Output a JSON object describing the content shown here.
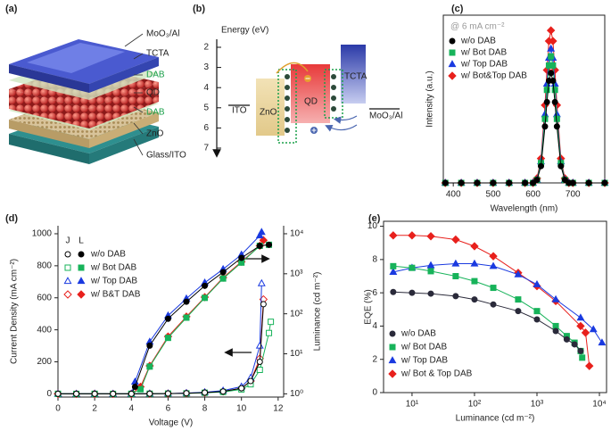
{
  "schematic": {
    "panel_label": "(a)",
    "labels": [
      "MoO₃/Al",
      "TCTA",
      "DAB",
      "QD",
      "DAB",
      "ZnO",
      "Glass/ITO"
    ]
  },
  "energy_diagram": {
    "panel_label": "(b)",
    "axis_label": "Energy (eV)",
    "yticks": [
      2,
      3,
      4,
      5,
      6,
      7
    ],
    "labels": {
      "ito": "ITO",
      "zno": "ZnO",
      "qd": "QD",
      "tcta": "TCTA",
      "moo3": "MoO₃/Al"
    }
  },
  "chart_data": [
    {
      "type": "line",
      "panel_label": "(c)",
      "annotation": "@ 6 mA cm⁻²",
      "x_label": "Wavelength (nm)",
      "y_label": "Intensity (a.u.)",
      "x": [
        380,
        420,
        460,
        500,
        540,
        580,
        600,
        610,
        620,
        630,
        635,
        640,
        645,
        650,
        655,
        660,
        670,
        680,
        690,
        700,
        740,
        780
      ],
      "xlim": [
        375,
        780
      ],
      "xticks": [
        400,
        500,
        600,
        700
      ],
      "ylim": [
        0,
        1.1
      ],
      "yticks": [],
      "legend": "upper left",
      "series": [
        {
          "name": "w/o DAB",
          "color": "#000000",
          "marker": "circle",
          "values": [
            0,
            0,
            0,
            0,
            0,
            0,
            0,
            0.02,
            0.11,
            0.37,
            0.53,
            0.67,
            0.72,
            0.67,
            0.53,
            0.37,
            0.11,
            0.02,
            0,
            0,
            0,
            0
          ]
        },
        {
          "name": "w/ Bot DAB",
          "color": "#17b35a",
          "marker": "square",
          "values": [
            0,
            0,
            0,
            0,
            0,
            0,
            0,
            0.02,
            0.13,
            0.42,
            0.61,
            0.77,
            0.83,
            0.77,
            0.61,
            0.42,
            0.13,
            0.02,
            0,
            0,
            0,
            0
          ]
        },
        {
          "name": "w/ Top DAB",
          "color": "#1a3ae0",
          "marker": "triangle",
          "values": [
            0,
            0,
            0,
            0,
            0,
            0,
            0,
            0.02,
            0.14,
            0.45,
            0.65,
            0.82,
            0.88,
            0.82,
            0.65,
            0.45,
            0.14,
            0.02,
            0,
            0,
            0,
            0
          ]
        },
        {
          "name": "w/ Bot&Top DAB",
          "color": "#e8201c",
          "marker": "diamond",
          "values": [
            0,
            0,
            0,
            0,
            0,
            0,
            0,
            0.03,
            0.16,
            0.51,
            0.74,
            0.93,
            1.0,
            0.93,
            0.74,
            0.51,
            0.16,
            0.03,
            0,
            0,
            0,
            0
          ]
        }
      ]
    },
    {
      "type": "line",
      "panel_label": "(d)",
      "x_label": "Voltage (V)",
      "y_label": "Current Density (mA cm⁻²)",
      "y2_label": "Luminance (cd m⁻²)",
      "legend_headers": [
        "J",
        "L"
      ],
      "legend": "upper left",
      "xlim": [
        0,
        12.3
      ],
      "xticks": [
        0,
        2,
        4,
        6,
        8,
        10,
        12
      ],
      "ylim": [
        -20,
        1050
      ],
      "yticks": [
        0,
        200,
        400,
        600,
        800,
        1000
      ],
      "y2scale": "log",
      "y2lim": [
        0.83,
        15849
      ],
      "y2ticks": [
        {
          "value": 1,
          "label": "10⁰"
        },
        {
          "value": 10,
          "label": "10¹"
        },
        {
          "value": 100,
          "label": "10²"
        },
        {
          "value": 1000,
          "label": "10³"
        },
        {
          "value": 10000,
          "label": "10⁴"
        }
      ],
      "series": [
        {
          "name": "w/o DAB",
          "color": "#000000",
          "marker": "circle",
          "filled": false,
          "x": [
            0,
            1,
            2,
            3,
            4,
            5,
            6,
            7,
            8,
            9,
            10,
            10.5,
            11,
            11.2
          ],
          "values": [
            0,
            0,
            0,
            0,
            0,
            1,
            2,
            4,
            8,
            15,
            35,
            80,
            200,
            560
          ]
        },
        {
          "name": "w/ Bot DAB",
          "color": "#17b35a",
          "marker": "square",
          "filled": false,
          "x": [
            0,
            1,
            2,
            3,
            4,
            5,
            6,
            7,
            8,
            9,
            10,
            10.5,
            11,
            11.5,
            11.6
          ],
          "values": [
            0,
            0,
            0,
            0,
            0,
            1,
            2,
            3,
            7,
            12,
            28,
            60,
            150,
            380,
            450
          ]
        },
        {
          "name": "w/ Top DAB",
          "color": "#1a3ae0",
          "marker": "triangle",
          "filled": false,
          "x": [
            0,
            1,
            2,
            3,
            4,
            5,
            6,
            7,
            8,
            9,
            10,
            10.5,
            11,
            11.1
          ],
          "values": [
            0,
            0,
            0,
            0,
            0,
            1,
            2,
            5,
            10,
            20,
            45,
            100,
            300,
            690
          ]
        },
        {
          "name": "w/ B&T DAB",
          "color": "#e8201c",
          "marker": "diamond",
          "filled": false,
          "x": [
            0,
            1,
            2,
            3,
            4,
            5,
            6,
            7,
            8,
            9,
            10,
            10.5,
            11,
            11.2
          ],
          "values": [
            0,
            0,
            0,
            0,
            0,
            1,
            2,
            4,
            8,
            15,
            35,
            80,
            220,
            590
          ]
        },
        {
          "color": "#000000",
          "marker": "circle",
          "filled": true,
          "axis": "y2",
          "x": [
            0,
            2,
            4,
            4.2,
            5,
            6,
            7,
            8,
            9,
            10,
            11,
            11.5
          ],
          "values": [
            1,
            1,
            1,
            1.5,
            16,
            75,
            200,
            500,
            1100,
            2500,
            5000,
            5300
          ]
        },
        {
          "color": "#17b35a",
          "marker": "square",
          "filled": true,
          "axis": "y2",
          "x": [
            0,
            2,
            4,
            4.5,
            5,
            6,
            7,
            8,
            9,
            10,
            11,
            11.5
          ],
          "values": [
            1,
            1,
            1,
            1.3,
            4.8,
            25,
            80,
            250,
            760,
            1900,
            5000,
            5300
          ]
        },
        {
          "color": "#1a3ae0",
          "marker": "triangle",
          "filled": true,
          "axis": "y2",
          "x": [
            0,
            2,
            4,
            4.2,
            5,
            6,
            7,
            8,
            9,
            10,
            11,
            11.1
          ],
          "values": [
            1,
            1,
            1,
            2,
            20,
            90,
            240,
            600,
            1300,
            3000,
            9000,
            11000
          ]
        },
        {
          "color": "#e8201c",
          "marker": "diamond",
          "filled": true,
          "axis": "y2",
          "x": [
            0,
            2,
            4,
            4.5,
            5,
            6,
            7,
            8,
            9,
            10,
            11,
            11.2
          ],
          "values": [
            1,
            1,
            1,
            1.5,
            5,
            27,
            85,
            260,
            800,
            2000,
            5000,
            6900
          ]
        }
      ]
    },
    {
      "type": "line",
      "panel_label": "(e)",
      "x_label": "Luminance (cd m⁻²)",
      "y_label": "EQE (%)",
      "legend": "lower left",
      "xscale": "log",
      "xlim": [
        3.5,
        13000
      ],
      "xticks": [
        {
          "value": 10,
          "label": "10¹"
        },
        {
          "value": 100,
          "label": "10²"
        },
        {
          "value": 1000,
          "label": "10³"
        },
        {
          "value": 10000,
          "label": "10⁴"
        }
      ],
      "ylim": [
        0,
        10.3
      ],
      "yticks": [
        0,
        2,
        4,
        6,
        8,
        10
      ],
      "series": [
        {
          "name": "w/o DAB",
          "color": "#2a2a3a",
          "marker": "circle",
          "x": [
            5,
            10,
            20,
            50,
            100,
            200,
            500,
            1000,
            2000,
            3000,
            4000,
            5000
          ],
          "values": [
            6.05,
            6.0,
            5.95,
            5.8,
            5.6,
            5.3,
            4.9,
            4.4,
            3.7,
            3.2,
            2.9,
            2.5
          ]
        },
        {
          "name": "w/ Bot DAB",
          "color": "#17b35a",
          "marker": "square",
          "x": [
            5,
            10,
            20,
            50,
            100,
            200,
            500,
            1000,
            2000,
            3000,
            4000,
            5000,
            5300
          ],
          "values": [
            7.6,
            7.5,
            7.3,
            7.0,
            6.7,
            6.3,
            5.6,
            4.9,
            4.0,
            3.4,
            3.0,
            2.5,
            2.1
          ]
        },
        {
          "name": "w/ Top DAB",
          "color": "#1a3ae0",
          "marker": "triangle",
          "x": [
            5,
            10,
            20,
            50,
            100,
            200,
            500,
            1000,
            2000,
            5000,
            8000,
            11000
          ],
          "values": [
            7.25,
            7.5,
            7.65,
            7.75,
            7.75,
            7.6,
            7.1,
            6.5,
            5.6,
            4.5,
            3.8,
            3.0
          ]
        },
        {
          "name": "w/ Bot & Top DAB",
          "color": "#e8201c",
          "marker": "diamond",
          "x": [
            5,
            10,
            20,
            50,
            100,
            200,
            500,
            1000,
            2000,
            5000,
            6000,
            6900
          ],
          "values": [
            9.45,
            9.45,
            9.4,
            9.2,
            8.8,
            8.2,
            7.2,
            6.4,
            5.5,
            4.0,
            3.6,
            1.6
          ]
        }
      ]
    }
  ]
}
